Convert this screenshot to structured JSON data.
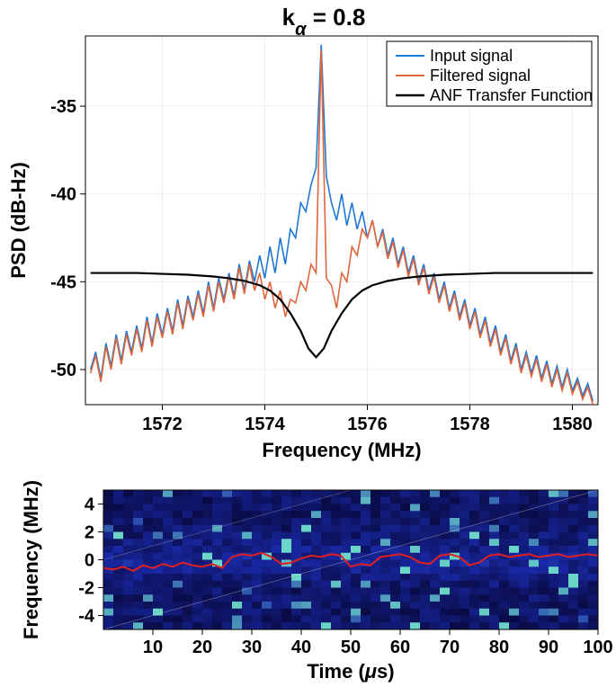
{
  "title": "k_α = 0.8",
  "top_chart": {
    "type": "line",
    "xlabel": "Frequency (MHz)",
    "ylabel": "PSD (dB-Hz)",
    "xlim": [
      1570.5,
      1580.5
    ],
    "ylim": [
      -52,
      -31
    ],
    "xticks": [
      1572,
      1574,
      1576,
      1578,
      1580
    ],
    "yticks": [
      -50,
      -45,
      -40,
      -35
    ],
    "grid_color": "#eeeeee",
    "background": "#ffffff",
    "axis_color": "#000000",
    "tick_fontsize": 20,
    "label_fontsize": 22,
    "series": [
      {
        "name": "Input signal",
        "color": "#1f77d4",
        "width": 1.6,
        "x": [
          1570.6,
          1570.7,
          1570.8,
          1570.9,
          1571.0,
          1571.1,
          1571.2,
          1571.3,
          1571.4,
          1571.5,
          1571.6,
          1571.7,
          1571.8,
          1571.9,
          1572.0,
          1572.1,
          1572.2,
          1572.3,
          1572.4,
          1572.5,
          1572.6,
          1572.7,
          1572.8,
          1572.9,
          1573.0,
          1573.1,
          1573.2,
          1573.3,
          1573.4,
          1573.5,
          1573.6,
          1573.7,
          1573.8,
          1573.9,
          1574.0,
          1574.1,
          1574.2,
          1574.3,
          1574.4,
          1574.5,
          1574.6,
          1574.7,
          1574.8,
          1574.9,
          1575.0,
          1575.1,
          1575.2,
          1575.3,
          1575.4,
          1575.5,
          1575.6,
          1575.7,
          1575.8,
          1575.9,
          1576.0,
          1576.1,
          1576.2,
          1576.3,
          1576.4,
          1576.5,
          1576.6,
          1576.7,
          1576.8,
          1576.9,
          1577.0,
          1577.1,
          1577.2,
          1577.3,
          1577.4,
          1577.5,
          1577.6,
          1577.7,
          1577.8,
          1577.9,
          1578.0,
          1578.1,
          1578.2,
          1578.3,
          1578.4,
          1578.5,
          1578.6,
          1578.7,
          1578.8,
          1578.9,
          1579.0,
          1579.1,
          1579.2,
          1579.3,
          1579.4,
          1579.5,
          1579.6,
          1579.7,
          1579.8,
          1579.9,
          1580.0,
          1580.1,
          1580.2,
          1580.3,
          1580.4
        ],
        "y": [
          -50.0,
          -49.0,
          -50.5,
          -48.5,
          -49.8,
          -48.0,
          -49.5,
          -47.8,
          -49.0,
          -47.5,
          -48.8,
          -47.0,
          -48.5,
          -46.8,
          -48.0,
          -46.5,
          -47.8,
          -46.0,
          -47.5,
          -45.8,
          -47.0,
          -45.5,
          -46.8,
          -45.0,
          -46.5,
          -44.8,
          -46.0,
          -44.5,
          -45.8,
          -44.0,
          -45.5,
          -43.8,
          -45.0,
          -43.5,
          -44.8,
          -43.0,
          -44.5,
          -42.5,
          -44.0,
          -42.0,
          -42.5,
          -40.5,
          -41.0,
          -39.5,
          -38.5,
          -31.5,
          -39.0,
          -40.5,
          -41.5,
          -40.0,
          -41.8,
          -40.5,
          -42.0,
          -41.0,
          -42.5,
          -41.5,
          -43.0,
          -42.0,
          -43.5,
          -42.5,
          -44.0,
          -43.0,
          -44.5,
          -43.5,
          -45.0,
          -44.0,
          -45.5,
          -44.5,
          -46.0,
          -45.0,
          -46.5,
          -45.5,
          -47.0,
          -46.0,
          -47.5,
          -46.5,
          -48.0,
          -47.0,
          -48.5,
          -47.5,
          -49.0,
          -48.0,
          -49.5,
          -48.5,
          -50.0,
          -49.0,
          -50.2,
          -49.2,
          -50.5,
          -49.5,
          -50.8,
          -49.8,
          -51.0,
          -50.0,
          -51.2,
          -50.5,
          -51.5,
          -50.8,
          -51.8
        ]
      },
      {
        "name": "Filtered signal",
        "color": "#e0663d",
        "width": 1.6,
        "x": [
          1570.6,
          1570.7,
          1570.8,
          1570.9,
          1571.0,
          1571.1,
          1571.2,
          1571.3,
          1571.4,
          1571.5,
          1571.6,
          1571.7,
          1571.8,
          1571.9,
          1572.0,
          1572.1,
          1572.2,
          1572.3,
          1572.4,
          1572.5,
          1572.6,
          1572.7,
          1572.8,
          1572.9,
          1573.0,
          1573.1,
          1573.2,
          1573.3,
          1573.4,
          1573.5,
          1573.6,
          1573.7,
          1573.8,
          1573.9,
          1574.0,
          1574.1,
          1574.2,
          1574.3,
          1574.4,
          1574.5,
          1574.6,
          1574.7,
          1574.8,
          1574.9,
          1575.0,
          1575.1,
          1575.2,
          1575.3,
          1575.4,
          1575.5,
          1575.6,
          1575.7,
          1575.8,
          1575.9,
          1576.0,
          1576.1,
          1576.2,
          1576.3,
          1576.4,
          1576.5,
          1576.6,
          1576.7,
          1576.8,
          1576.9,
          1577.0,
          1577.1,
          1577.2,
          1577.3,
          1577.4,
          1577.5,
          1577.6,
          1577.7,
          1577.8,
          1577.9,
          1578.0,
          1578.1,
          1578.2,
          1578.3,
          1578.4,
          1578.5,
          1578.6,
          1578.7,
          1578.8,
          1578.9,
          1579.0,
          1579.1,
          1579.2,
          1579.3,
          1579.4,
          1579.5,
          1579.6,
          1579.7,
          1579.8,
          1579.9,
          1580.0,
          1580.1,
          1580.2,
          1580.3,
          1580.4
        ],
        "y": [
          -50.2,
          -49.2,
          -50.7,
          -48.7,
          -50.0,
          -48.2,
          -49.7,
          -48.0,
          -49.2,
          -47.7,
          -49.0,
          -47.2,
          -48.7,
          -47.0,
          -48.2,
          -46.7,
          -48.0,
          -46.2,
          -47.7,
          -46.0,
          -47.2,
          -45.7,
          -47.0,
          -45.2,
          -46.7,
          -45.0,
          -46.2,
          -44.7,
          -46.0,
          -44.2,
          -45.7,
          -44.0,
          -45.5,
          -44.5,
          -46.0,
          -45.0,
          -46.5,
          -45.5,
          -47.0,
          -46.0,
          -46.2,
          -45.0,
          -45.5,
          -44.0,
          -44.5,
          -31.8,
          -44.8,
          -45.2,
          -46.5,
          -44.5,
          -45.0,
          -43.0,
          -43.5,
          -42.0,
          -42.5,
          -41.5,
          -43.0,
          -42.2,
          -43.7,
          -42.7,
          -44.2,
          -43.2,
          -44.7,
          -43.7,
          -45.2,
          -44.2,
          -45.7,
          -44.7,
          -46.2,
          -45.2,
          -46.7,
          -45.7,
          -47.2,
          -46.2,
          -47.7,
          -46.7,
          -48.2,
          -47.2,
          -48.7,
          -47.7,
          -49.2,
          -48.2,
          -49.7,
          -48.7,
          -50.2,
          -49.2,
          -50.4,
          -49.4,
          -50.7,
          -49.7,
          -51.0,
          -50.0,
          -51.2,
          -50.2,
          -51.4,
          -50.7,
          -51.7,
          -51.0,
          -52.0
        ]
      },
      {
        "name": "ANF Transfer Function",
        "color": "#000000",
        "width": 2.2,
        "x": [
          1570.6,
          1571.0,
          1571.5,
          1572.0,
          1572.5,
          1573.0,
          1573.3,
          1573.6,
          1573.9,
          1574.1,
          1574.3,
          1574.5,
          1574.7,
          1574.85,
          1575.0,
          1575.15,
          1575.3,
          1575.5,
          1575.7,
          1575.9,
          1576.1,
          1576.4,
          1576.7,
          1577.0,
          1577.5,
          1578.0,
          1578.5,
          1579.0,
          1579.5,
          1580.0,
          1580.4
        ],
        "y": [
          -44.5,
          -44.5,
          -44.5,
          -44.55,
          -44.6,
          -44.7,
          -44.8,
          -44.95,
          -45.2,
          -45.5,
          -46.0,
          -46.8,
          -47.8,
          -48.8,
          -49.3,
          -48.8,
          -47.8,
          -46.8,
          -46.0,
          -45.5,
          -45.2,
          -44.95,
          -44.8,
          -44.7,
          -44.6,
          -44.55,
          -44.5,
          -44.5,
          -44.5,
          -44.5,
          -44.5
        ]
      }
    ],
    "legend": {
      "items": [
        "Input signal",
        "Filtered signal",
        "ANF Transfer Function"
      ],
      "position": "top-right",
      "border_color": "#000000",
      "background": "#ffffff"
    }
  },
  "bottom_chart": {
    "type": "spectrogram",
    "xlabel": "Time (μs)",
    "ylabel": "Frequency (MHz)",
    "xlim": [
      0,
      100
    ],
    "ylim": [
      -5,
      5
    ],
    "xticks": [
      10,
      20,
      30,
      40,
      50,
      60,
      70,
      80,
      90,
      100
    ],
    "yticks": [
      -4,
      -2,
      0,
      2,
      4
    ],
    "colormap_low": "#08083a",
    "colormap_mid": "#1a2aa8",
    "colormap_high": "#6bd6c8",
    "tick_fontsize": 20,
    "label_fontsize": 22,
    "overlay_line": {
      "color": "#e02020",
      "width": 2.0,
      "x": [
        0,
        2,
        4,
        6,
        8,
        10,
        12,
        14,
        16,
        18,
        20,
        22,
        24,
        26,
        28,
        30,
        32,
        34,
        36,
        38,
        40,
        42,
        44,
        46,
        48,
        50,
        52,
        54,
        56,
        58,
        60,
        62,
        64,
        66,
        68,
        70,
        72,
        74,
        76,
        78,
        80,
        82,
        84,
        86,
        88,
        90,
        92,
        94,
        96,
        98,
        100
      ],
      "y": [
        -0.6,
        -0.7,
        -0.5,
        -0.8,
        -0.4,
        -0.6,
        -0.3,
        -0.5,
        -0.2,
        -0.4,
        -0.5,
        -0.3,
        -0.6,
        0.2,
        0.4,
        0.3,
        0.5,
        0.2,
        -0.3,
        -0.2,
        0.1,
        0.3,
        0.2,
        0.4,
        0.3,
        -0.5,
        -0.3,
        -0.4,
        0.2,
        0.3,
        0.4,
        0.2,
        -0.2,
        -0.3,
        0.3,
        0.4,
        0.2,
        -0.4,
        -0.2,
        0.3,
        0.4,
        0.2,
        0.3,
        0.4,
        0.2,
        0.3,
        0.4,
        0.2,
        0.3,
        0.4,
        0.3
      ]
    },
    "spectrogram_cells": {
      "nx": 50,
      "ny": 20
    }
  }
}
